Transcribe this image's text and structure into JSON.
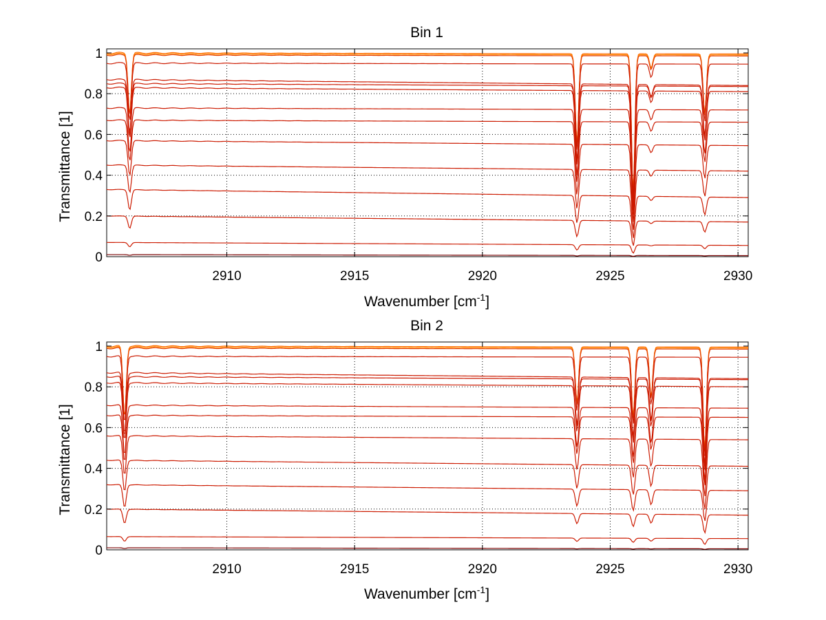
{
  "chart_data": [
    {
      "type": "line",
      "title": "Bin 1",
      "xlabel": "Wavenumber [cm",
      "xlabel_sup": "-1",
      "xlabel_end": "]",
      "ylabel": "Transmittance [1]",
      "xlim": [
        2905.3,
        2930.4
      ],
      "ylim": [
        0,
        1.02
      ],
      "grid": true,
      "xticks": [
        2910,
        2915,
        2920,
        2925,
        2930
      ],
      "xtick_labels": [
        "2910",
        "2915",
        "2920",
        "2925",
        "2930"
      ],
      "yticks": [
        0,
        0.2,
        0.4,
        0.6,
        0.8,
        1
      ],
      "ytick_labels": [
        "0",
        "0.2",
        "0.4",
        "0.6",
        "0.8",
        "1"
      ],
      "line_color": "#cc1a00",
      "absorption_lines": [
        {
          "x": 2906.2,
          "relative_depth": 0.3
        },
        {
          "x": 2923.7,
          "relative_depth": 0.45
        },
        {
          "x": 2925.9,
          "relative_depth": 0.7
        },
        {
          "x": 2926.6,
          "relative_depth": 0.07
        },
        {
          "x": 2928.7,
          "relative_depth": 0.3
        }
      ],
      "series_baselines": [
        {
          "start": 1.0,
          "end": 0.995
        },
        {
          "start": 0.995,
          "end": 0.99
        },
        {
          "start": 0.99,
          "end": 0.985
        },
        {
          "start": 0.95,
          "end": 0.945
        },
        {
          "start": 0.87,
          "end": 0.84
        },
        {
          "start": 0.85,
          "end": 0.835
        },
        {
          "start": 0.83,
          "end": 0.81
        },
        {
          "start": 0.73,
          "end": 0.72
        },
        {
          "start": 0.67,
          "end": 0.66
        },
        {
          "start": 0.57,
          "end": 0.545
        },
        {
          "start": 0.45,
          "end": 0.42
        },
        {
          "start": 0.33,
          "end": 0.29
        },
        {
          "start": 0.2,
          "end": 0.17
        },
        {
          "start": 0.07,
          "end": 0.055
        },
        {
          "start": 0.01,
          "end": 0.005
        }
      ]
    },
    {
      "type": "line",
      "title": "Bin 2",
      "xlabel": "Wavenumber [cm",
      "xlabel_sup": "-1",
      "xlabel_end": "]",
      "ylabel": "Transmittance [1]",
      "xlim": [
        2905.3,
        2930.4
      ],
      "ylim": [
        0,
        1.02
      ],
      "grid": true,
      "xticks": [
        2910,
        2915,
        2920,
        2925,
        2930
      ],
      "xtick_labels": [
        "2910",
        "2915",
        "2920",
        "2925",
        "2930"
      ],
      "yticks": [
        0,
        0.2,
        0.4,
        0.6,
        0.8,
        1
      ],
      "ytick_labels": [
        "0",
        "0.2",
        "0.4",
        "0.6",
        "0.8",
        "1"
      ],
      "line_color": "#cc1a00",
      "absorption_lines": [
        {
          "x": 2906.0,
          "relative_depth": 0.35
        },
        {
          "x": 2923.7,
          "relative_depth": 0.28
        },
        {
          "x": 2925.9,
          "relative_depth": 0.35
        },
        {
          "x": 2926.6,
          "relative_depth": 0.25
        },
        {
          "x": 2928.7,
          "relative_depth": 0.52
        }
      ],
      "series_baselines": [
        {
          "start": 1.0,
          "end": 0.995
        },
        {
          "start": 0.995,
          "end": 0.99
        },
        {
          "start": 0.99,
          "end": 0.985
        },
        {
          "start": 0.95,
          "end": 0.945
        },
        {
          "start": 0.87,
          "end": 0.84
        },
        {
          "start": 0.85,
          "end": 0.835
        },
        {
          "start": 0.82,
          "end": 0.8
        },
        {
          "start": 0.71,
          "end": 0.695
        },
        {
          "start": 0.66,
          "end": 0.65
        },
        {
          "start": 0.56,
          "end": 0.54
        },
        {
          "start": 0.44,
          "end": 0.41
        },
        {
          "start": 0.32,
          "end": 0.29
        },
        {
          "start": 0.2,
          "end": 0.17
        },
        {
          "start": 0.065,
          "end": 0.055
        },
        {
          "start": 0.01,
          "end": 0.005
        }
      ]
    }
  ]
}
